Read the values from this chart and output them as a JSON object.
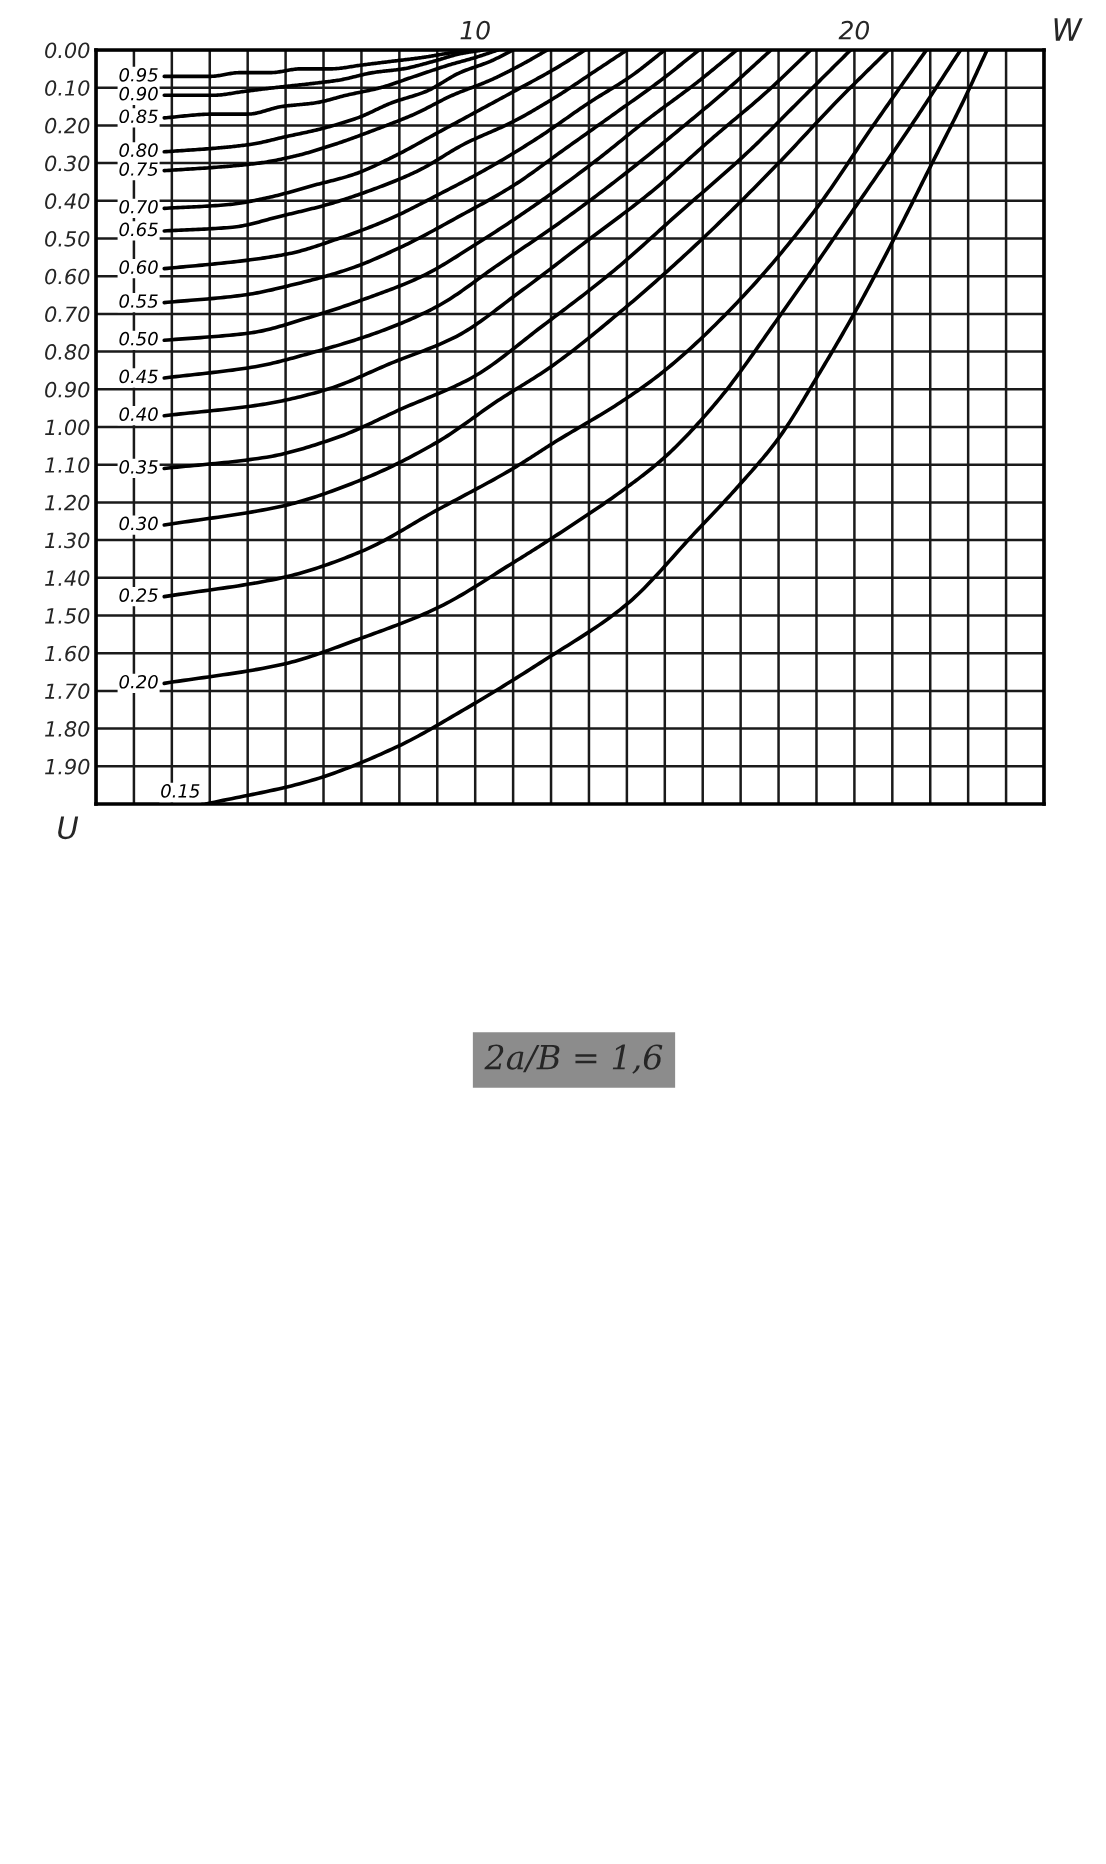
{
  "chart_data": {
    "type": "line",
    "xlabel": "W",
    "ylabel": "U",
    "xlim": [
      0,
      25
    ],
    "ylim": [
      2.0,
      0
    ],
    "xticks": [
      {
        "value": 0,
        "label": null
      },
      {
        "value": 1,
        "label": null
      },
      {
        "value": 2,
        "label": null
      },
      {
        "value": 3,
        "label": null
      },
      {
        "value": 4,
        "label": null
      },
      {
        "value": 5,
        "label": null
      },
      {
        "value": 6,
        "label": null
      },
      {
        "value": 7,
        "label": null
      },
      {
        "value": 8,
        "label": null
      },
      {
        "value": 9,
        "label": null
      },
      10,
      {
        "value": 11,
        "label": null
      },
      {
        "value": 12,
        "label": null
      },
      {
        "value": 13,
        "label": null
      },
      {
        "value": 14,
        "label": null
      },
      {
        "value": 15,
        "label": null
      },
      {
        "value": 16,
        "label": null
      },
      {
        "value": 17,
        "label": null
      },
      {
        "value": 18,
        "label": null
      },
      {
        "value": 19,
        "label": null
      },
      20,
      {
        "value": 21,
        "label": null
      },
      {
        "value": 22,
        "label": null
      },
      {
        "value": 23,
        "label": null
      },
      {
        "value": 24,
        "label": null
      },
      {
        "value": 25,
        "label": null
      }
    ],
    "yticks": [
      {
        "value": 0,
        "label": "0.00"
      },
      {
        "value": 0.1,
        "label": "0.10"
      },
      {
        "value": 0.2,
        "label": "0.20"
      },
      {
        "value": 0.3,
        "label": "0.30"
      },
      {
        "value": 0.4,
        "label": "0.40"
      },
      {
        "value": 0.5,
        "label": "0.50"
      },
      {
        "value": 0.6,
        "label": "0.60"
      },
      {
        "value": 0.7,
        "label": "0.70"
      },
      {
        "value": 0.8,
        "label": "0.80"
      },
      {
        "value": 0.9,
        "label": "0.90"
      },
      {
        "value": 1.0,
        "label": "1.00"
      },
      {
        "value": 1.1,
        "label": "1.10"
      },
      {
        "value": 1.2,
        "label": "1.20"
      },
      {
        "value": 1.3,
        "label": "1.30"
      },
      {
        "value": 1.4,
        "label": "1.40"
      },
      {
        "value": 1.5,
        "label": "1.50"
      },
      {
        "value": 1.6,
        "label": "1.60"
      },
      {
        "value": 1.7,
        "label": "1.70"
      },
      {
        "value": 1.8,
        "label": "1.80"
      },
      {
        "value": 1.9,
        "label": "1.90"
      }
    ],
    "grid": true,
    "line_style": "solid",
    "annotations": [
      "2a/B = 1,6"
    ],
    "series": [
      {
        "name": "0.95",
        "color": "#000000",
        "x": [
          1.8,
          3.0,
          3.8,
          4.6,
          5.4,
          6.2,
          7.0,
          7.8,
          8.6,
          9.2,
          9.8
        ],
        "values": [
          0.07,
          0.07,
          0.06,
          0.06,
          0.05,
          0.05,
          0.04,
          0.03,
          0.02,
          0.01,
          0
        ]
      },
      {
        "name": "0.90",
        "color": "#000000",
        "x": [
          1.8,
          3.1,
          3.9,
          4.7,
          5.6,
          6.4,
          7.3,
          8.1,
          8.9,
          9.6,
          10.2
        ],
        "values": [
          0.12,
          0.12,
          0.11,
          0.1,
          0.09,
          0.08,
          0.06,
          0.05,
          0.03,
          0.01,
          0
        ]
      },
      {
        "name": "0.85",
        "color": "#000000",
        "x": [
          1.8,
          3.1,
          4.0,
          4.9,
          5.8,
          6.6,
          7.5,
          8.4,
          9.3,
          10.0,
          10.6
        ],
        "values": [
          0.18,
          0.17,
          0.17,
          0.15,
          0.14,
          0.12,
          0.1,
          0.07,
          0.04,
          0.02,
          0
        ]
      },
      {
        "name": "0.80",
        "color": "#000000",
        "x": [
          1.8,
          3.2,
          4.1,
          5.0,
          5.9,
          6.9,
          7.8,
          8.7,
          9.6,
          10.4,
          11.0
        ],
        "values": [
          0.27,
          0.26,
          0.25,
          0.23,
          0.21,
          0.18,
          0.14,
          0.11,
          0.06,
          0.03,
          0
        ]
      },
      {
        "name": "0.75",
        "color": "#000000",
        "x": [
          1.8,
          3.3,
          4.3,
          5.3,
          6.3,
          7.4,
          8.4,
          9.4,
          10.4,
          11.2,
          11.9
        ],
        "values": [
          0.32,
          0.31,
          0.3,
          0.28,
          0.25,
          0.21,
          0.17,
          0.12,
          0.08,
          0.04,
          0
        ]
      },
      {
        "name": "0.70",
        "color": "#000000",
        "x": [
          1.8,
          3.5,
          4.6,
          5.7,
          6.8,
          7.9,
          9.0,
          10.1,
          11.2,
          12.1,
          12.9
        ],
        "values": [
          0.42,
          0.41,
          0.39,
          0.36,
          0.33,
          0.28,
          0.22,
          0.16,
          0.1,
          0.05,
          0
        ]
      },
      {
        "name": "0.65",
        "color": "#000000",
        "x": [
          1.8,
          3.6,
          4.9,
          6.1,
          7.3,
          8.5,
          9.7,
          11.0,
          12.2,
          13.1,
          14.0
        ],
        "values": [
          0.48,
          0.47,
          0.44,
          0.41,
          0.37,
          0.32,
          0.25,
          0.19,
          0.12,
          0.06,
          0
        ]
      },
      {
        "name": "0.60",
        "color": "#000000",
        "x": [
          1.8,
          3.8,
          5.1,
          6.4,
          7.7,
          9.1,
          10.4,
          11.7,
          13.0,
          14.1,
          15.0
        ],
        "values": [
          0.58,
          0.56,
          0.54,
          0.5,
          0.45,
          0.38,
          0.31,
          0.23,
          0.14,
          0.07,
          0
        ]
      },
      {
        "name": "0.55",
        "color": "#000000",
        "x": [
          1.8,
          3.9,
          5.3,
          6.7,
          8.1,
          9.6,
          11.0,
          12.4,
          13.8,
          14.9,
          15.9
        ],
        "values": [
          0.67,
          0.65,
          0.62,
          0.58,
          0.52,
          0.44,
          0.36,
          0.26,
          0.16,
          0.08,
          0
        ]
      },
      {
        "name": "0.50",
        "color": "#000000",
        "x": [
          1.8,
          4.1,
          5.6,
          7.1,
          8.6,
          10.1,
          11.6,
          13.1,
          14.6,
          15.8,
          16.9
        ],
        "values": [
          0.77,
          0.75,
          0.71,
          0.66,
          0.6,
          0.51,
          0.41,
          0.3,
          0.18,
          0.09,
          0
        ]
      },
      {
        "name": "0.45",
        "color": "#000000",
        "x": [
          1.8,
          4.2,
          5.8,
          7.4,
          9.0,
          10.6,
          12.2,
          13.8,
          15.4,
          16.7,
          17.8
        ],
        "values": [
          0.87,
          0.84,
          0.8,
          0.75,
          0.68,
          0.57,
          0.46,
          0.34,
          0.21,
          0.1,
          0
        ]
      },
      {
        "name": "0.40",
        "color": "#000000",
        "x": [
          1.8,
          4.4,
          6.1,
          7.8,
          9.5,
          11.2,
          12.9,
          14.6,
          16.3,
          17.7,
          18.85
        ],
        "values": [
          0.97,
          0.94,
          0.9,
          0.83,
          0.76,
          0.64,
          0.51,
          0.38,
          0.23,
          0.11,
          0
        ]
      },
      {
        "name": "0.35",
        "color": "#000000",
        "x": [
          1.8,
          4.5,
          6.3,
          8.1,
          9.9,
          11.8,
          13.6,
          15.4,
          17.2,
          18.6,
          19.9
        ],
        "values": [
          1.11,
          1.08,
          1.03,
          0.95,
          0.87,
          0.73,
          0.59,
          0.43,
          0.27,
          0.13,
          0
        ]
      },
      {
        "name": "0.30",
        "color": "#000000",
        "x": [
          1.8,
          4.9,
          7.0,
          9.0,
          10.6,
          12.0,
          14.0,
          16.0,
          18.0,
          19.5,
          20.9
        ],
        "values": [
          1.26,
          1.21,
          1.14,
          1.04,
          0.93,
          0.84,
          0.68,
          0.5,
          0.3,
          0.14,
          0
        ]
      },
      {
        "name": "0.25",
        "color": "#000000",
        "x": [
          1.8,
          4.9,
          7.0,
          9.0,
          11.0,
          12.1,
          13.9,
          15.0,
          17.0,
          19.0,
          20.5,
          21.9
        ],
        "values": [
          1.45,
          1.4,
          1.33,
          1.22,
          1.11,
          1.04,
          0.93,
          0.85,
          0.66,
          0.42,
          0.2,
          0
        ]
      },
      {
        "name": "0.20",
        "color": "#000000",
        "x": [
          1.8,
          4.9,
          7.0,
          9.0,
          11.0,
          12.1,
          14.0,
          15.0,
          16.4,
          18.0,
          20.0,
          21.5,
          22.8
        ],
        "values": [
          1.68,
          1.63,
          1.56,
          1.48,
          1.36,
          1.29,
          1.16,
          1.08,
          0.93,
          0.71,
          0.42,
          0.2,
          0
        ]
      },
      {
        "name": "0.15",
        "color": "#000000",
        "x": [
          2.9,
          5.6,
          7.9,
          9.7,
          11.8,
          14.0,
          15.8,
          17.0,
          18.0,
          19.0,
          20.1,
          21.1,
          22.0,
          22.9,
          23.5
        ],
        "values": [
          2.0,
          1.94,
          1.85,
          1.75,
          1.62,
          1.47,
          1.28,
          1.15,
          1.03,
          0.87,
          0.68,
          0.49,
          0.31,
          0.13,
          0
        ]
      }
    ]
  }
}
